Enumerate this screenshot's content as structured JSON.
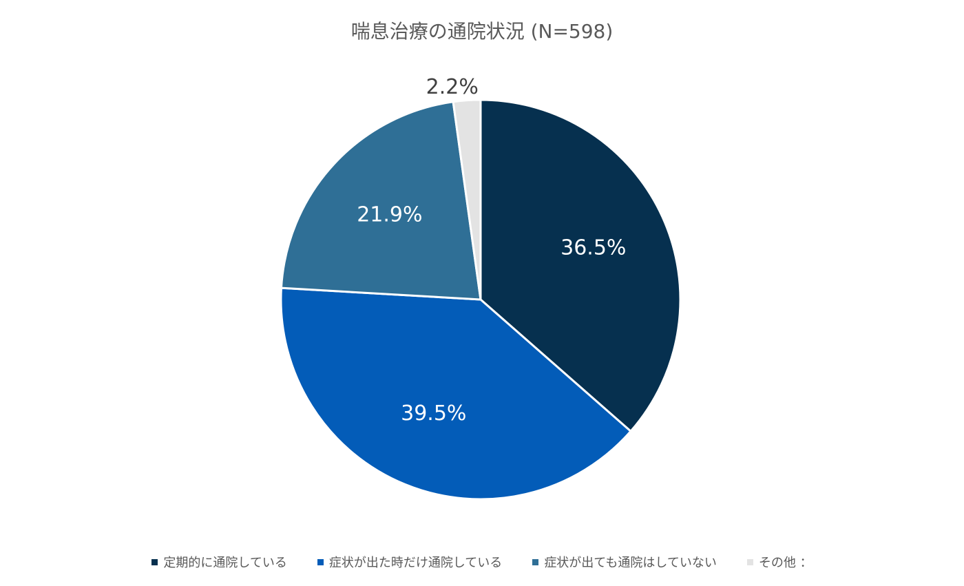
{
  "chart_data": {
    "type": "pie",
    "title": "喘息治療の通院状況 (N=598)",
    "categories": [
      "定期的に通院している",
      "症状が出た時だけ通院している",
      "症状が出ても通院はしていない",
      "その他 ："
    ],
    "values": [
      36.5,
      39.5,
      21.9,
      2.2
    ],
    "value_labels": [
      "36.5%",
      "39.5%",
      "21.9%",
      "2.2%"
    ],
    "colors": [
      "#06304f",
      "#035cb8",
      "#2f6f96",
      "#e3e3e3"
    ]
  }
}
